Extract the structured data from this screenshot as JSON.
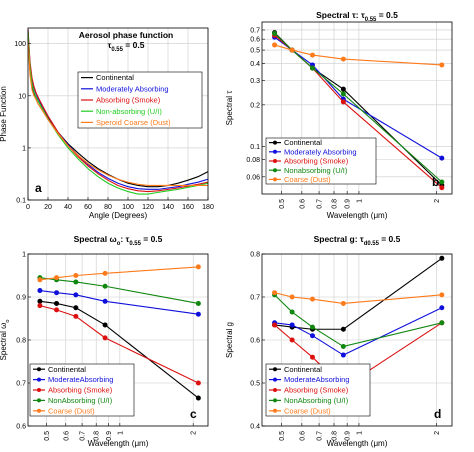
{
  "chart_data": [
    {
      "type": "line",
      "panel": "a",
      "title": "Aerosol phase function",
      "title2": "τ",
      "title2_sub": "0.55",
      "title2_rest": " = 0.5",
      "xlabel": "Angle (Degrees)",
      "ylabel": "Phase Function",
      "xlim": [
        0,
        180
      ],
      "ylim": [
        0.1,
        200
      ],
      "yscale": "log",
      "xticks": [
        0,
        20,
        40,
        60,
        80,
        100,
        120,
        140,
        160,
        180
      ],
      "xticklabels": [
        "0",
        "20",
        "40",
        "60",
        "80",
        "100",
        "120",
        "140",
        "160",
        "180"
      ],
      "yticks": [
        0.1,
        1,
        10,
        100
      ],
      "yticklabels": [
        "0.1",
        "1",
        "10",
        "100"
      ],
      "grid": true,
      "legend": "top-right",
      "series": [
        {
          "name": "Continental",
          "color": "#000000",
          "x": [
            0,
            2,
            4,
            6,
            8,
            10,
            15,
            20,
            30,
            40,
            50,
            60,
            70,
            80,
            90,
            100,
            110,
            120,
            130,
            140,
            150,
            160,
            170,
            180
          ],
          "y": [
            150,
            30,
            15,
            11,
            9.5,
            8,
            5.5,
            3.8,
            2.0,
            1.2,
            0.8,
            0.55,
            0.4,
            0.31,
            0.25,
            0.21,
            0.19,
            0.18,
            0.18,
            0.19,
            0.21,
            0.24,
            0.28,
            0.35
          ]
        },
        {
          "name": "Moderately Absorbing",
          "color": "#1010dd",
          "x": [
            0,
            2,
            4,
            6,
            8,
            10,
            15,
            20,
            30,
            40,
            50,
            60,
            70,
            80,
            90,
            100,
            110,
            120,
            130,
            140,
            150,
            160,
            170,
            180
          ],
          "y": [
            180,
            40,
            20,
            14,
            11,
            9,
            6,
            4.0,
            2.0,
            1.15,
            0.72,
            0.48,
            0.34,
            0.26,
            0.21,
            0.18,
            0.165,
            0.16,
            0.16,
            0.17,
            0.18,
            0.2,
            0.22,
            0.25
          ]
        },
        {
          "name": "Absorbing (Smoke)",
          "color": "#dd1010",
          "x": [
            0,
            2,
            4,
            6,
            8,
            10,
            15,
            20,
            30,
            40,
            50,
            60,
            70,
            80,
            90,
            100,
            110,
            120,
            130,
            140,
            150,
            160,
            170,
            180
          ],
          "y": [
            190,
            45,
            22,
            15,
            11.5,
            9.5,
            6.2,
            4.1,
            2.0,
            1.1,
            0.68,
            0.45,
            0.32,
            0.24,
            0.19,
            0.165,
            0.15,
            0.145,
            0.15,
            0.16,
            0.17,
            0.185,
            0.2,
            0.22
          ]
        },
        {
          "name": "Non-absorbing (U/I)",
          "color": "#22cc22",
          "x": [
            0,
            2,
            4,
            6,
            8,
            10,
            15,
            20,
            30,
            40,
            50,
            60,
            70,
            80,
            90,
            100,
            110,
            120,
            130,
            140,
            150,
            160,
            170,
            180
          ],
          "y": [
            170,
            35,
            17,
            12,
            9.5,
            8,
            5.4,
            3.6,
            1.8,
            1.0,
            0.62,
            0.4,
            0.28,
            0.21,
            0.17,
            0.145,
            0.13,
            0.13,
            0.14,
            0.15,
            0.16,
            0.175,
            0.19,
            0.21
          ]
        },
        {
          "name": "Speroid Coarse (Dust)",
          "color": "#ff7a1a",
          "x": [
            0,
            2,
            4,
            6,
            8,
            10,
            15,
            20,
            30,
            40,
            50,
            60,
            70,
            80,
            90,
            100,
            110,
            120,
            130,
            140,
            150,
            160,
            170,
            180
          ],
          "y": [
            120,
            25,
            13,
            10,
            8.5,
            7,
            5,
            3.5,
            1.9,
            1.1,
            0.72,
            0.5,
            0.38,
            0.3,
            0.25,
            0.22,
            0.2,
            0.19,
            0.19,
            0.19,
            0.19,
            0.19,
            0.19,
            0.19
          ]
        }
      ]
    },
    {
      "type": "line",
      "panel": "b",
      "title": "Spectral τ: τ",
      "title_sub": "0.55",
      "title_rest": " = 0.5",
      "xlabel": "Wavelength (μm)",
      "ylabel": "Spectral τ",
      "xscale": "log",
      "yscale": "log",
      "xlim": [
        0.42,
        2.3
      ],
      "ylim": [
        0.045,
        0.8
      ],
      "xticks": [
        0.5,
        0.6,
        0.7,
        0.8,
        0.9,
        1,
        2
      ],
      "xticklabels": [
        "0.5",
        "0.6",
        "0.7",
        "0.8",
        "0.9",
        "1",
        "2"
      ],
      "yticks": [
        0.06,
        0.08,
        0.1,
        0.2,
        0.3,
        0.4,
        0.5,
        0.6,
        0.7
      ],
      "yticklabels": [
        "0.06",
        "0.08",
        "0.1",
        "0.2",
        "0.3",
        "0.4",
        "0.5",
        "0.6",
        "0.7"
      ],
      "grid": true,
      "legend": "bottom-left",
      "series": [
        {
          "name": "Continental",
          "color": "#000000",
          "x": [
            0.47,
            0.55,
            0.66,
            0.87,
            2.1
          ],
          "y": [
            0.67,
            0.5,
            0.37,
            0.26,
            0.052
          ]
        },
        {
          "name": "Moderately Absorbing",
          "color": "#1010dd",
          "x": [
            0.47,
            0.55,
            0.66,
            0.87,
            2.1
          ],
          "y": [
            0.62,
            0.5,
            0.39,
            0.22,
            0.082
          ]
        },
        {
          "name": "Absorbing (Smoke)",
          "color": "#dd1010",
          "x": [
            0.47,
            0.55,
            0.66,
            0.87,
            2.1
          ],
          "y": [
            0.64,
            0.5,
            0.37,
            0.21,
            0.05
          ]
        },
        {
          "name": "Nonabsorbing (U/I)",
          "color": "#118811",
          "x": [
            0.47,
            0.55,
            0.66,
            0.87,
            2.1
          ],
          "y": [
            0.66,
            0.5,
            0.37,
            0.24,
            0.055
          ]
        },
        {
          "name": "Coarse (Dust)",
          "color": "#ff7a1a",
          "x": [
            0.47,
            0.55,
            0.66,
            0.87,
            2.1
          ],
          "y": [
            0.545,
            0.5,
            0.46,
            0.43,
            0.39
          ]
        }
      ]
    },
    {
      "type": "line",
      "panel": "c",
      "title": "Spectral ω",
      "title_sub": "o",
      "title_rest": ": τ",
      "title_sub2": "0.55",
      "title_rest2": " = 0.5",
      "xlabel": "Wavelength (μm)",
      "ylabel": "Spectral ω",
      "ylabel_sub": "o",
      "xscale": "log",
      "xlim": [
        0.42,
        2.3
      ],
      "ylim": [
        0.6,
        1.0
      ],
      "xticks": [
        0.5,
        0.6,
        0.7,
        0.8,
        0.9,
        1,
        2
      ],
      "xticklabels": [
        "0.5",
        "0.6",
        "0.7",
        "0.8",
        "0.9",
        "1",
        "2"
      ],
      "yticks": [
        0.6,
        0.7,
        0.8,
        0.9,
        1
      ],
      "yticklabels": [
        "0.6",
        "0.7",
        "0.8",
        "0.9",
        "1"
      ],
      "grid": true,
      "legend": "bottom-left",
      "series": [
        {
          "name": "Continental",
          "color": "#000000",
          "x": [
            0.47,
            0.55,
            0.66,
            0.87,
            2.1
          ],
          "y": [
            0.89,
            0.885,
            0.875,
            0.835,
            0.665
          ]
        },
        {
          "name": "ModerateAbsorbing",
          "color": "#1010dd",
          "x": [
            0.47,
            0.55,
            0.66,
            0.87,
            2.1
          ],
          "y": [
            0.915,
            0.91,
            0.905,
            0.89,
            0.86
          ]
        },
        {
          "name": "Absorbing (Smoke)",
          "color": "#dd1010",
          "x": [
            0.47,
            0.55,
            0.66,
            0.87,
            2.1
          ],
          "y": [
            0.88,
            0.87,
            0.855,
            0.805,
            0.7
          ]
        },
        {
          "name": "NonAbsorbing (U/I)",
          "color": "#118811",
          "x": [
            0.47,
            0.55,
            0.66,
            0.87,
            2.1
          ],
          "y": [
            0.945,
            0.94,
            0.935,
            0.925,
            0.885
          ]
        },
        {
          "name": "Coarse (Dust)",
          "color": "#ff7a1a",
          "x": [
            0.47,
            0.55,
            0.66,
            0.87,
            2.1
          ],
          "y": [
            0.94,
            0.945,
            0.95,
            0.955,
            0.97
          ]
        }
      ]
    },
    {
      "type": "line",
      "panel": "d",
      "title": "Spectral g: τ",
      "title_sub": "d0.55",
      "title_rest": " = 0.5",
      "xlabel": "Wavelength (μm)",
      "ylabel": "Spectral g",
      "xscale": "log",
      "xlim": [
        0.42,
        2.3
      ],
      "ylim": [
        0.4,
        0.8
      ],
      "xticks": [
        0.5,
        0.6,
        0.7,
        0.8,
        0.9,
        1,
        2
      ],
      "xticklabels": [
        "0.5",
        "0.6",
        "0.7",
        "0.8",
        "0.9",
        "1",
        "2"
      ],
      "yticks": [
        0.4,
        0.5,
        0.6,
        0.7,
        0.8
      ],
      "yticklabels": [
        "0.4",
        "0.5",
        "0.6",
        "0.7",
        "0.8"
      ],
      "grid": true,
      "legend": "bottom-left",
      "series": [
        {
          "name": "Continental",
          "color": "#000000",
          "x": [
            0.47,
            0.55,
            0.66,
            0.87,
            2.1
          ],
          "y": [
            0.635,
            0.63,
            0.625,
            0.625,
            0.79
          ]
        },
        {
          "name": "ModerateAbsorbing",
          "color": "#1010dd",
          "x": [
            0.47,
            0.55,
            0.66,
            0.87,
            2.1
          ],
          "y": [
            0.64,
            0.635,
            0.61,
            0.565,
            0.675
          ]
        },
        {
          "name": "Absorbing (Smoke)",
          "color": "#dd1010",
          "x": [
            0.47,
            0.55,
            0.66,
            0.87,
            2.1
          ],
          "y": [
            0.635,
            0.6,
            0.56,
            0.49,
            0.64
          ]
        },
        {
          "name": "NonAbsorbing (U/I)",
          "color": "#118811",
          "x": [
            0.47,
            0.55,
            0.66,
            0.87,
            2.1
          ],
          "y": [
            0.705,
            0.665,
            0.63,
            0.585,
            0.64
          ]
        },
        {
          "name": "Coarse (Dust)",
          "color": "#ff7a1a",
          "x": [
            0.47,
            0.55,
            0.66,
            0.87,
            2.1
          ],
          "y": [
            0.71,
            0.7,
            0.695,
            0.685,
            0.705
          ]
        }
      ]
    }
  ]
}
